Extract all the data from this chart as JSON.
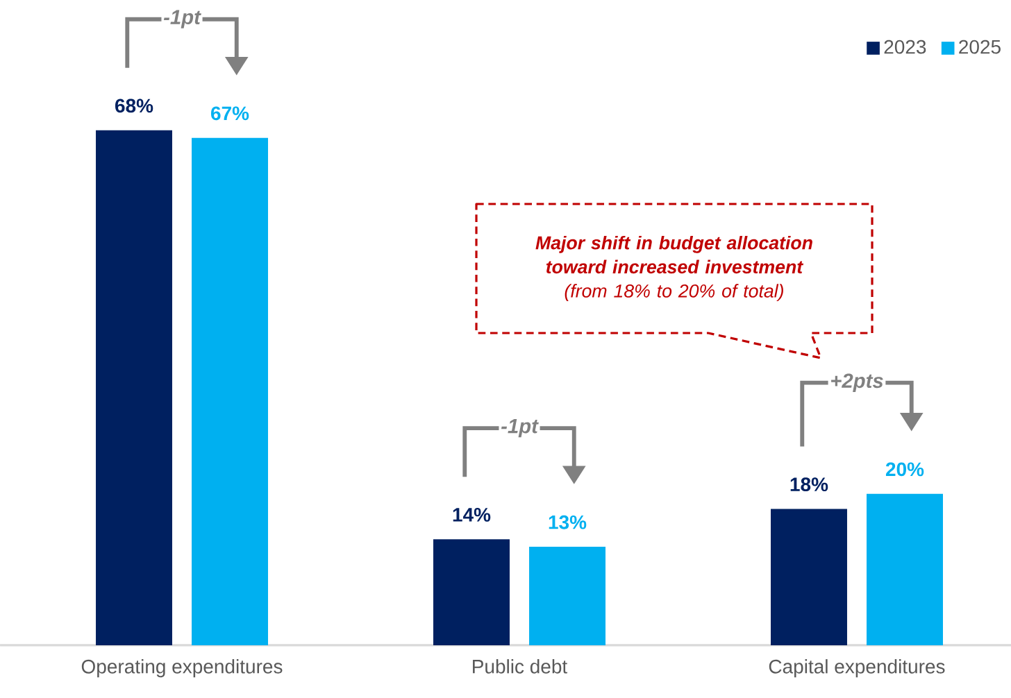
{
  "chart_data": {
    "type": "bar",
    "categories": [
      "Operating expenditures",
      "Public debt",
      "Capital expenditures"
    ],
    "series": [
      {
        "name": "2023",
        "color": "#002060",
        "values": [
          68,
          14,
          18
        ],
        "value_labels": [
          "68%",
          "14%",
          "18%"
        ]
      },
      {
        "name": "2025",
        "color": "#00b0f0",
        "values": [
          67,
          13,
          20
        ],
        "value_labels": [
          "67%",
          "13%",
          "20%"
        ]
      }
    ],
    "annotations": [
      "-1pt",
      "-1pt",
      "+2pts",
      "Major shift in budget allocation toward increased investment",
      "(from 18% to 20% of total)"
    ],
    "legend": "top right"
  }
}
